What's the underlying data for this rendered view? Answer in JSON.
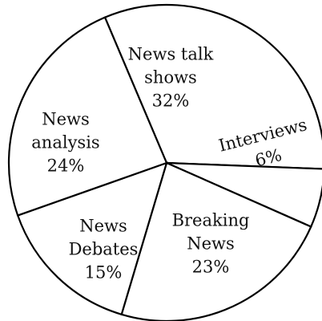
{
  "chart_data": {
    "type": "pie",
    "title": "",
    "slices": [
      {
        "name": "News talk shows",
        "lines": [
          "News talk",
          "shows",
          "32%"
        ],
        "value": 32
      },
      {
        "name": "Interviews",
        "lines": [
          "Interviews",
          "6%"
        ],
        "value": 6
      },
      {
        "name": "Breaking News",
        "lines": [
          "Breaking",
          "News",
          "23%"
        ],
        "value": 23
      },
      {
        "name": "News Debates",
        "lines": [
          "News",
          "Debates",
          "15%"
        ],
        "value": 15
      },
      {
        "name": "News analysis",
        "lines": [
          "News",
          "analysis",
          "24%"
        ],
        "value": 24
      }
    ],
    "colors": {
      "fill": "#ffffff",
      "stroke": "#000000"
    }
  }
}
